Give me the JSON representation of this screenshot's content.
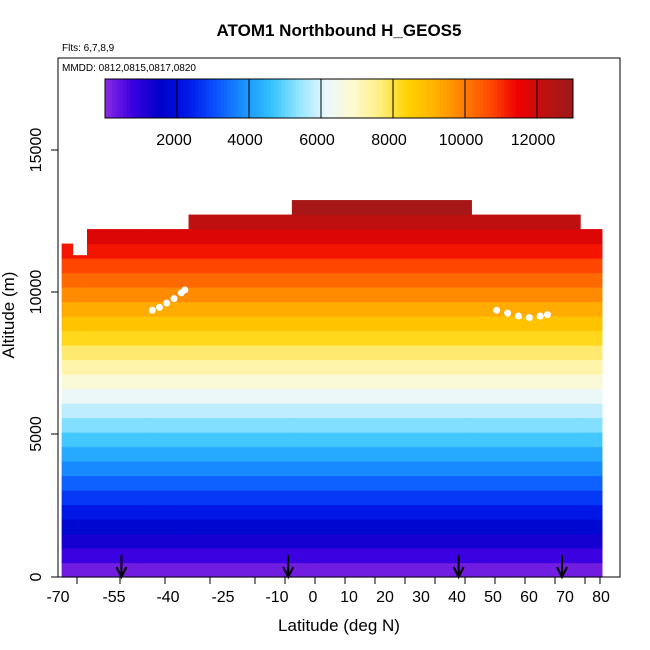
{
  "chart_data": {
    "type": "heatmap",
    "title": "ATOM1 Northbound H_GEOS5",
    "flights_note": "Flts: 6,7,8,9",
    "dates_note": "MMDD: 0812,0815,0817,0820",
    "xlabel": "Latitude (deg N)",
    "ylabel": "Altitude (m)",
    "xlim": [
      -72,
      83
    ],
    "ylim": [
      0,
      17900
    ],
    "x_tick_labels": [
      "-70",
      "-55",
      "-40",
      "-25",
      "-10",
      "0",
      "10",
      "20",
      "30",
      "40",
      "50",
      "60",
      "70",
      "80"
    ],
    "y_ticks": [
      0,
      5000,
      10000,
      15000
    ],
    "y_tick_labels": [
      "0",
      "5000",
      "10000",
      "15000"
    ],
    "colorbar": {
      "min": 0,
      "max": 13000,
      "ticks": [
        2000,
        4000,
        6000,
        8000,
        10000,
        12000
      ],
      "tick_labels": [
        "2000",
        "4000",
        "6000",
        "8000",
        "10000",
        "12000"
      ],
      "colors": [
        "#8a2be2",
        "#3a00e0",
        "#0000c8",
        "#0018e8",
        "#0a50ff",
        "#1a90ff",
        "#30bfff",
        "#90e4ff",
        "#e8f6ff",
        "#fffbd0",
        "#ffee80",
        "#ffd200",
        "#ffb000",
        "#ff8000",
        "#ff4a00",
        "#ee0000",
        "#c01010",
        "#9b1a1a"
      ]
    },
    "cell_height": 500,
    "columns": [
      {
        "x0": -71.0,
        "x1": -68.0,
        "top": 11500
      },
      {
        "x0": -68.0,
        "x1": -64.0,
        "top": 11100
      },
      {
        "x0": -64.0,
        "x1": -47.0,
        "top": 12000
      },
      {
        "x0": -47.0,
        "x1": -36.0,
        "top": 12000
      },
      {
        "x0": -36.0,
        "x1": -7.5,
        "top": 12500
      },
      {
        "x0": -7.5,
        "x1": 42.0,
        "top": 13000
      },
      {
        "x0": 42.0,
        "x1": 72.0,
        "top": 12500
      },
      {
        "x0": 72.0,
        "x1": 78.0,
        "top": 12000
      }
    ],
    "flight_tracks": [
      {
        "x": [
          -46,
          -44,
          -42,
          -40,
          -38,
          -37
        ],
        "y": [
          9200,
          9300,
          9450,
          9600,
          9800,
          9900
        ]
      },
      {
        "x": [
          49,
          52,
          55,
          58,
          61,
          63
        ],
        "y": [
          9200,
          9100,
          9000,
          8950,
          9000,
          9050
        ]
      }
    ],
    "markers_x": [
      -54.5,
      -8.5,
      38.5,
      67
    ]
  }
}
